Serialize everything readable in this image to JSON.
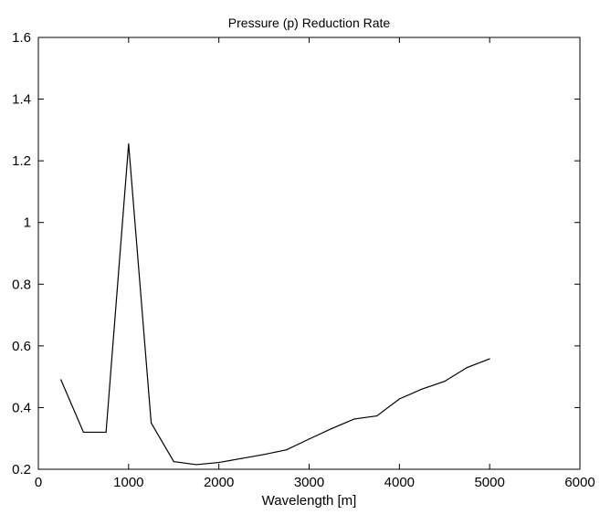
{
  "chart_data": {
    "type": "line",
    "title": "Pressure (p) Reduction Rate",
    "xlabel": "Wavelength [m]",
    "ylabel": "",
    "xlim": [
      0,
      6000
    ],
    "ylim": [
      0.2,
      1.6
    ],
    "xticks": [
      0,
      1000,
      2000,
      3000,
      4000,
      5000,
      6000
    ],
    "yticks": [
      0.2,
      0.4,
      0.6,
      0.8,
      1,
      1.2,
      1.4,
      1.6
    ],
    "xtick_labels": [
      "0",
      "1000",
      "2000",
      "3000",
      "4000",
      "5000",
      "6000"
    ],
    "ytick_labels": [
      "0.2",
      "0.4",
      "0.6",
      "0.8",
      "1",
      "1.2",
      "1.4",
      "1.6"
    ],
    "grid": false,
    "legend": "none",
    "line_color": "#000000",
    "series": [
      {
        "x": [
          250,
          500,
          750,
          1000,
          1250,
          1500,
          1750,
          2000,
          2250,
          2500,
          2750,
          3000,
          3250,
          3500,
          3750,
          4000,
          4250,
          4500,
          4750,
          5000
        ],
        "y": [
          0.49,
          0.32,
          0.32,
          1.255,
          0.35,
          0.225,
          0.215,
          0.222,
          0.235,
          0.248,
          0.263,
          0.298,
          0.332,
          0.363,
          0.373,
          0.428,
          0.46,
          0.485,
          0.53,
          0.558
        ]
      }
    ]
  }
}
